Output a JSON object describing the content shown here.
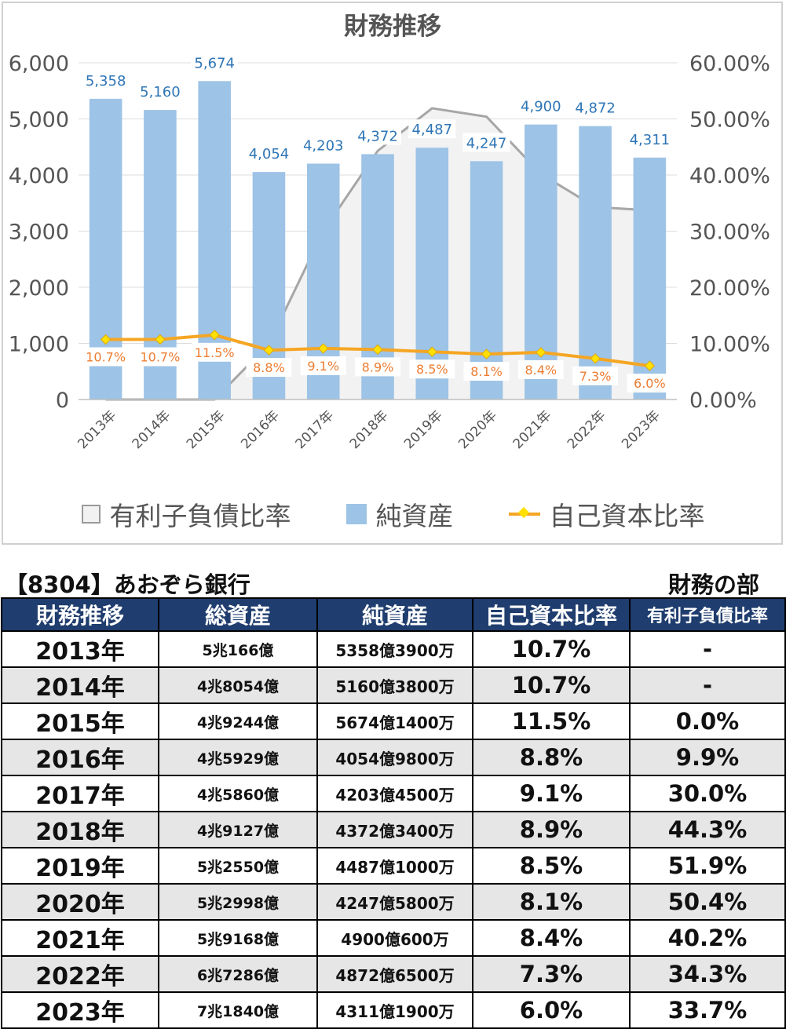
{
  "chart_data": {
    "type": "bar",
    "title": "財務推移",
    "categories": [
      "2013年",
      "2014年",
      "2015年",
      "2016年",
      "2017年",
      "2018年",
      "2019年",
      "2020年",
      "2021年",
      "2022年",
      "2023年"
    ],
    "series": [
      {
        "name": "純資産",
        "kind": "bar",
        "axis": "left",
        "values": [
          5358,
          5160,
          5674,
          4054,
          4203,
          4372,
          4487,
          4247,
          4900,
          4872,
          4311
        ],
        "labels": [
          "5,358",
          "5,160",
          "5,674",
          "4,054",
          "4,203",
          "4,372",
          "4,487",
          "4,247",
          "4,900",
          "4,872",
          "4,311"
        ],
        "color": "#9dc3e6"
      },
      {
        "name": "自己資本比率",
        "kind": "line",
        "axis": "right",
        "values": [
          10.7,
          10.7,
          11.5,
          8.8,
          9.1,
          8.9,
          8.5,
          8.1,
          8.4,
          7.3,
          6.0
        ],
        "labels": [
          "10.7%",
          "10.7%",
          "11.5%",
          "8.8%",
          "9.1%",
          "8.9%",
          "8.5%",
          "8.1%",
          "8.4%",
          "7.3%",
          "6.0%"
        ],
        "color": "#f5a623"
      },
      {
        "name": "有利子負債比率",
        "kind": "area",
        "axis": "right",
        "values": [
          0,
          0,
          0,
          9.9,
          30.0,
          44.3,
          51.9,
          50.4,
          40.2,
          34.3,
          33.7
        ],
        "color": "#f2f2f2"
      }
    ],
    "ylim_left": [
      0,
      6000
    ],
    "ylim_right": [
      0,
      60
    ],
    "left_ticks": [
      "0",
      "1,000",
      "2,000",
      "3,000",
      "4,000",
      "5,000",
      "6,000"
    ],
    "right_ticks": [
      "0.00%",
      "10.00%",
      "20.00%",
      "30.00%",
      "40.00%",
      "50.00%",
      "60.00%"
    ],
    "legend_position": "bottom"
  },
  "legend": {
    "debt": "有利子負債比率",
    "net": "純資産",
    "ratio": "自己資本比率"
  },
  "table": {
    "company": "【8304】あおぞら銀行",
    "section": "財務の部",
    "headers": [
      "財務推移",
      "総資産",
      "純資産",
      "自己資本比率",
      "有利子負債比率"
    ],
    "rows": [
      [
        "2013年",
        "5兆166億",
        "5358億3900万",
        "10.7%",
        "-"
      ],
      [
        "2014年",
        "4兆8054億",
        "5160億3800万",
        "10.7%",
        "-"
      ],
      [
        "2015年",
        "4兆9244億",
        "5674億1400万",
        "11.5%",
        "0.0%"
      ],
      [
        "2016年",
        "4兆5929億",
        "4054億9800万",
        "8.8%",
        "9.9%"
      ],
      [
        "2017年",
        "4兆5860億",
        "4203億4500万",
        "9.1%",
        "30.0%"
      ],
      [
        "2018年",
        "4兆9127億",
        "4372億3400万",
        "8.9%",
        "44.3%"
      ],
      [
        "2019年",
        "5兆2550億",
        "4487億1000万",
        "8.5%",
        "51.9%"
      ],
      [
        "2020年",
        "5兆2998億",
        "4247億5800万",
        "8.1%",
        "50.4%"
      ],
      [
        "2021年",
        "5兆9168億",
        "4900億600万",
        "8.4%",
        "40.2%"
      ],
      [
        "2022年",
        "6兆7286億",
        "4872億6500万",
        "7.3%",
        "34.3%"
      ],
      [
        "2023年",
        "7兆1840億",
        "4311億1900万",
        "6.0%",
        "33.7%"
      ]
    ]
  }
}
